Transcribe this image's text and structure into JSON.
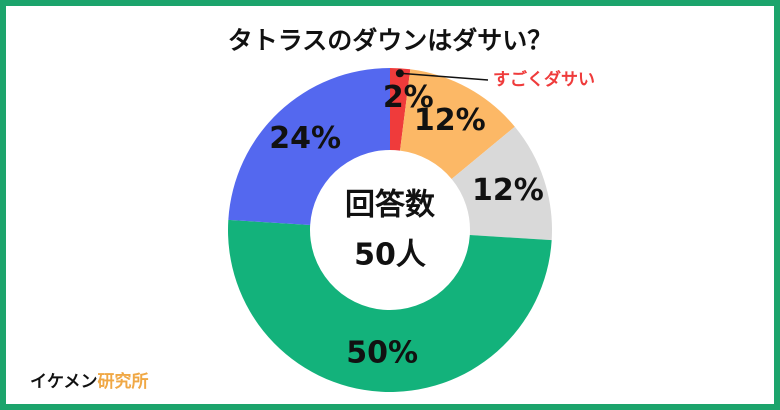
{
  "chart_data": {
    "type": "donut",
    "title": "タトラスのダウンはダサい？",
    "categories": [
      "すごくダサい",
      null,
      null,
      null,
      null
    ],
    "values": [
      2,
      12,
      12,
      50,
      24
    ],
    "value_labels": [
      "2%",
      "12%",
      "12%",
      "50%",
      "24%"
    ],
    "colors": [
      "#ef3b3b",
      "#fcb866",
      "#d9d9d9",
      "#13b27b",
      "#5468ef"
    ],
    "center_text": [
      "回答数",
      "50人"
    ]
  },
  "footer": {
    "brand": "イケメン",
    "brand_accent": "研究所"
  }
}
